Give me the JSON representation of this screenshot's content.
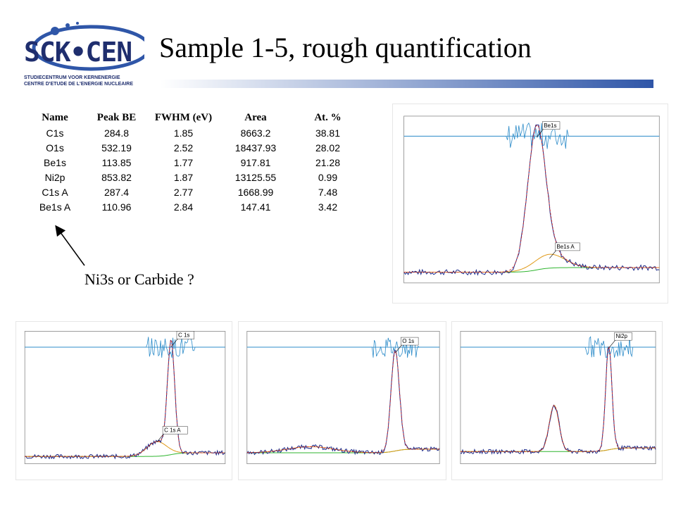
{
  "slide": {
    "title": "Sample 1-5, rough quantification"
  },
  "logo": {
    "brand": "SCK•CEN",
    "line1": "STUDIECENTRUM VOOR KERNENERGIE",
    "line2": "CENTRE D'ETUDE DE L'ENERGIE NUCLEAIRE"
  },
  "annotation": "Ni3s or Carbide ?",
  "colors": {
    "accent": "#2f56a8",
    "spectrum": "#1c2a8a",
    "fit": "#cc2a2a",
    "background_fit": "#2fb52f",
    "component": "#e09a1a",
    "residual": "#2a8ac8"
  },
  "chart_data": [
    {
      "type": "table",
      "columns": [
        "Name",
        "Peak BE",
        "FWHM (eV)",
        "Area",
        "At. %"
      ],
      "rows": [
        [
          "C1s",
          "284.8",
          "1.85",
          "8663.2",
          "38.81"
        ],
        [
          "O1s",
          "532.19",
          "2.52",
          "18437.93",
          "28.02"
        ],
        [
          "Be1s",
          "113.85",
          "1.77",
          "917.81",
          "21.28"
        ],
        [
          "Ni2p",
          "853.82",
          "1.87",
          "13125.55",
          "0.99"
        ],
        [
          "C1s A",
          "287.4",
          "2.77",
          "1668.99",
          "7.48"
        ],
        [
          "Be1s A",
          "110.96",
          "2.84",
          "147.41",
          "3.42"
        ]
      ]
    },
    {
      "type": "line",
      "panel": "Be1s",
      "peak_labels": [
        "Be1s",
        "Be1s A"
      ],
      "peaks": [
        {
          "pos": 0.52,
          "height": 0.88,
          "width": 0.035
        },
        {
          "pos": 0.57,
          "height": 0.09,
          "width": 0.06
        }
      ],
      "baseline": 0.07
    },
    {
      "type": "line",
      "panel": "C1s",
      "peak_labels": [
        "C 1s",
        "C 1s A"
      ],
      "peaks": [
        {
          "pos": 0.73,
          "height": 0.9,
          "width": 0.018
        },
        {
          "pos": 0.66,
          "height": 0.12,
          "width": 0.05
        }
      ],
      "baseline": 0.06
    },
    {
      "type": "line",
      "panel": "O1s",
      "peak_labels": [
        "O 1s"
      ],
      "peaks": [
        {
          "pos": 0.77,
          "height": 0.82,
          "width": 0.022
        },
        {
          "pos": 0.33,
          "height": 0.05,
          "width": 0.12
        }
      ],
      "baseline": 0.09
    },
    {
      "type": "line",
      "panel": "Ni2p",
      "peak_labels": [
        "Ni2p"
      ],
      "peaks": [
        {
          "pos": 0.76,
          "height": 0.85,
          "width": 0.016
        },
        {
          "pos": 0.48,
          "height": 0.38,
          "width": 0.025
        }
      ],
      "baseline": 0.1
    }
  ]
}
